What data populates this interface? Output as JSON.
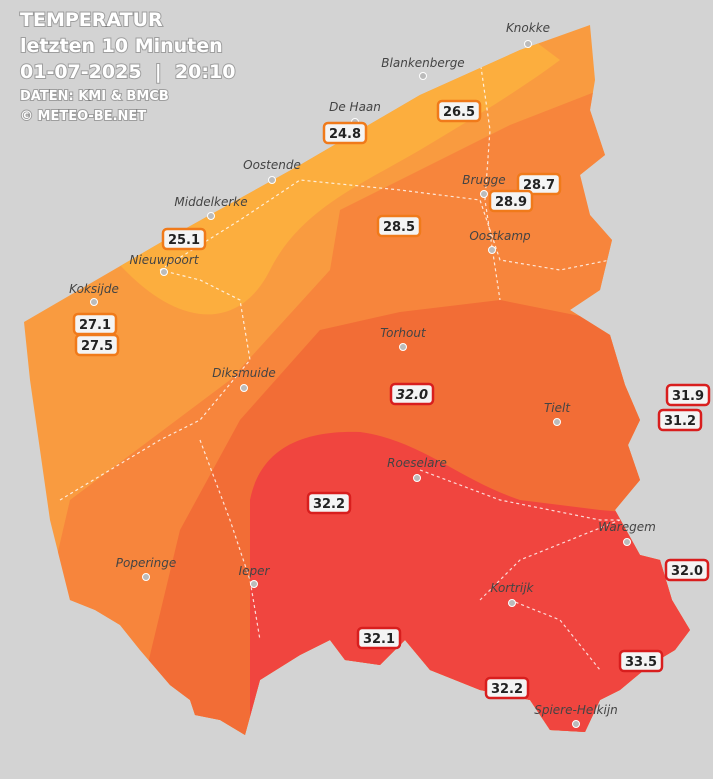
{
  "header": {
    "title": "TEMPERATUR",
    "subtitle": "letzten 10 Minuten",
    "datetime": "01-07-2025  |  20:10",
    "source": "DATEN: KMI & BMCB",
    "copyright": "© METEO-BE.NET"
  },
  "cities": [
    {
      "label": "Knokke"
    },
    {
      "label": "Blankenberge"
    },
    {
      "label": "De Haan"
    },
    {
      "label": "Oostende"
    },
    {
      "label": "Middelkerke"
    },
    {
      "label": "Brugge"
    },
    {
      "label": "Oostkamp"
    },
    {
      "label": "Nieuwpoort"
    },
    {
      "label": "Koksijde"
    },
    {
      "label": "Torhout"
    },
    {
      "label": "Diksmuide"
    },
    {
      "label": "Tielt"
    },
    {
      "label": "Roeselare"
    },
    {
      "label": "Waregem"
    },
    {
      "label": "Poperinge"
    },
    {
      "label": "Ieper"
    },
    {
      "label": "Kortrijk"
    },
    {
      "label": "Spiere-Helkijn"
    }
  ],
  "stations": [
    {
      "value": "26.5"
    },
    {
      "value": "24.8"
    },
    {
      "value": "28.7"
    },
    {
      "value": "28.9"
    },
    {
      "value": "25.1"
    },
    {
      "value": "28.5"
    },
    {
      "value": "27.1"
    },
    {
      "value": "27.5"
    },
    {
      "value": "32.0"
    },
    {
      "value": "31.9"
    },
    {
      "value": "31.2"
    },
    {
      "value": "32.2"
    },
    {
      "value": "32.0"
    },
    {
      "value": "32.1"
    },
    {
      "value": "33.5"
    },
    {
      "value": "32.2"
    }
  ]
}
